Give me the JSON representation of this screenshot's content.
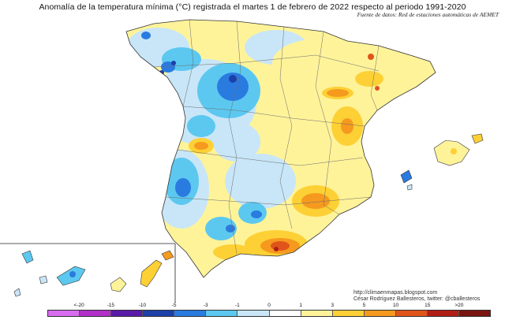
{
  "title": "Anomalía de la temperatura mínima (°C) registrada el martes 1 de febrero de 2022 respecto al periodo 1991-2020",
  "source": "Fuente de datos: Red de estaciones automáticas de AEMET",
  "credits": {
    "url": "http://climaenmapas.blogspot.com",
    "author": "César Rodríguez Ballesteros, twitter: @cballesteros"
  },
  "legend": {
    "labels": [
      "<-20",
      "-15",
      "-10",
      "-5",
      "-3",
      "-1",
      "0",
      "1",
      "3",
      "5",
      "10",
      "15",
      ">20"
    ],
    "colors": [
      "#d86cf0",
      "#b030c8",
      "#5a1aa8",
      "#1c3fa8",
      "#2a7be0",
      "#5cc8f0",
      "#c8e6f8",
      "#ffffff",
      "#fff39a",
      "#fdd035",
      "#f59a1e",
      "#e0541a",
      "#b01e14",
      "#7a1410"
    ]
  }
}
